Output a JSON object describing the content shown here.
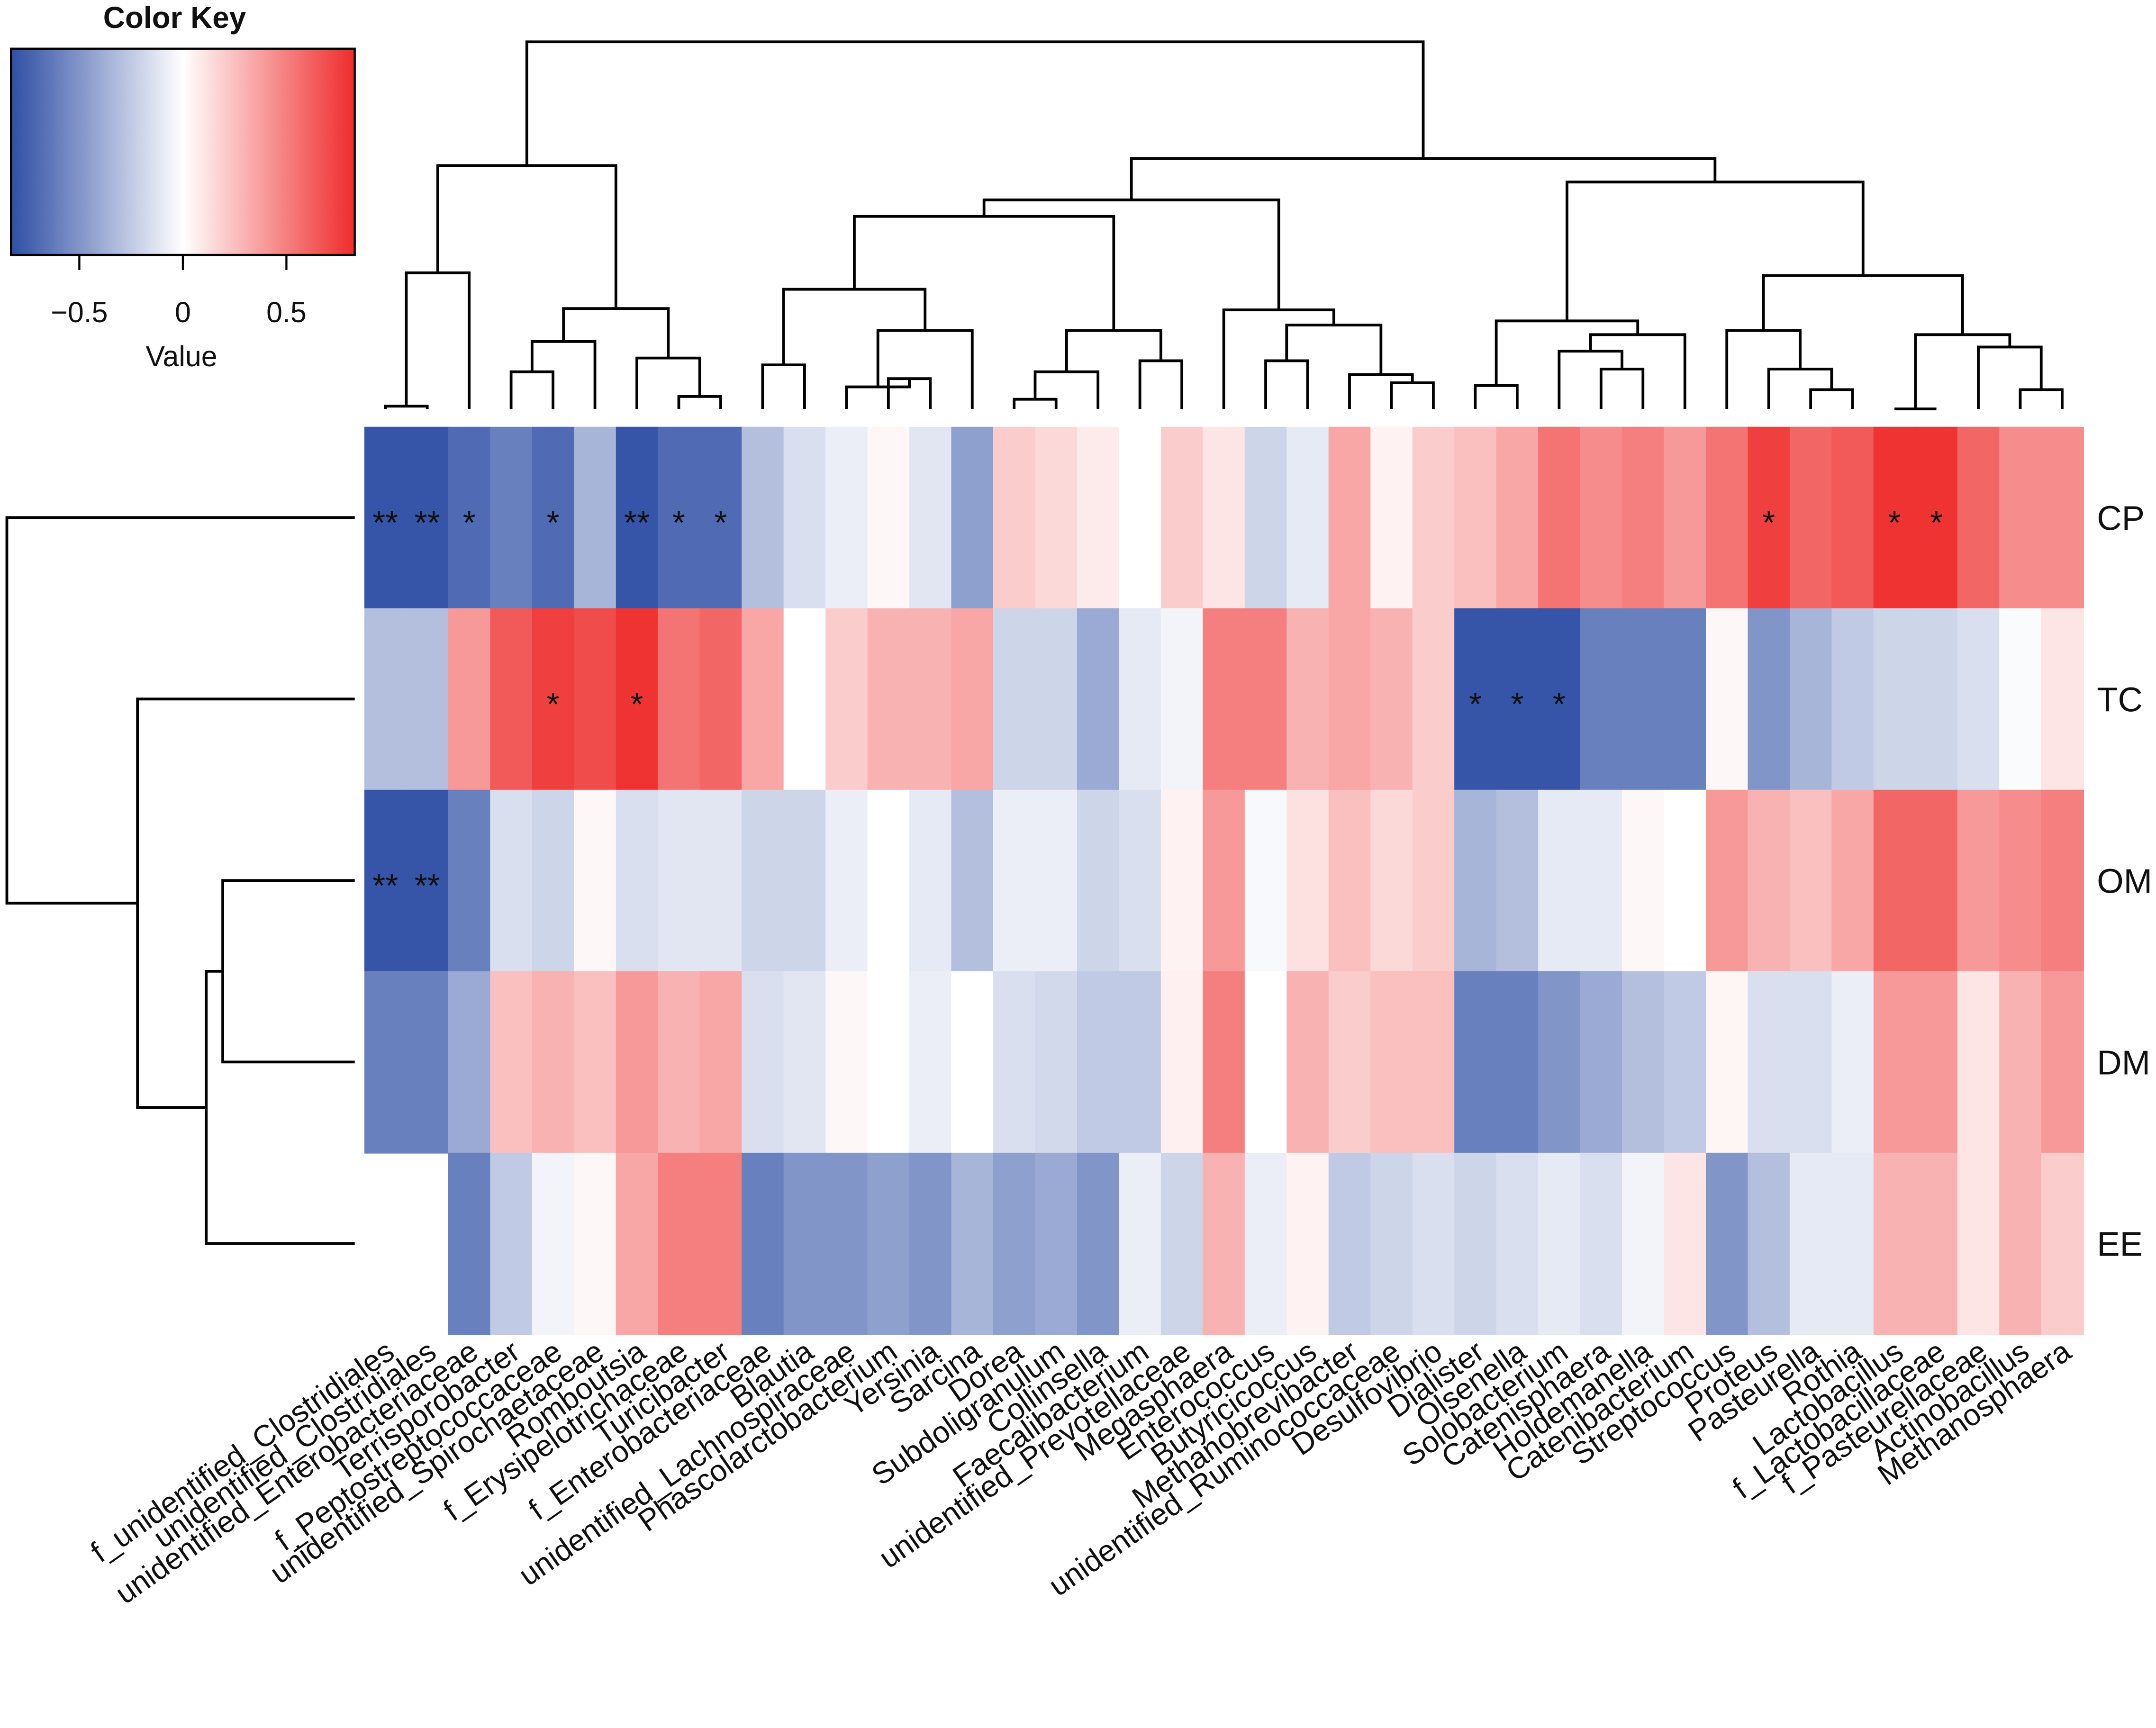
{
  "chart_data": {
    "type": "heatmap",
    "legend_title": "Color Key",
    "legend_axis_label": "Value",
    "zlim": [
      -0.83,
      0.83
    ],
    "zticks": [
      {
        "value": -0.5,
        "label": "−0.5"
      },
      0,
      0.5
    ],
    "colors": [
      "#2f4fa5",
      "#ffffff",
      "#ee2b2b"
    ],
    "rows": [
      "CP",
      "TC",
      "OM",
      "DM",
      "EE"
    ],
    "columns": [
      "f_unidentified_Clostridiales",
      "unidentified_Clostridiales",
      "unidentified_Enterobacteriaceae",
      "Terrisporobacter",
      "f_Peptostreptococcaceae",
      "unidentified_Spirochaetaceae",
      "Romboutsia",
      "f_Erysipelotrichaceae",
      "Turicibacter",
      "f_Enterobacteriaceae",
      "Blautia",
      "unidentified_Lachnospiraceae",
      "Phascolarctobacterium",
      "Yersinia",
      "Sarcina",
      "Dorea",
      "Subdoligranulum",
      "Collinsella",
      "Faecalibacterium",
      "unidentified_Prevotellaceae",
      "Megasphaera",
      "Enterococcus",
      "Butyricicoccus",
      "Methanobrevibacter",
      "unidentified_Ruminococcaceae",
      "Desulfovibrio",
      "Dialister",
      "Olsenella",
      "Solobacterium",
      "Catenisphaera",
      "Holdemanella",
      "Catenibacterium",
      "Streptococcus",
      "Proteus",
      "Pasteurella",
      "Rothia",
      "Lactobacillus",
      "f_Lactobacillaceae",
      "f_Pasteurellaceae",
      "Actinobacillus",
      "Methanosphaera"
    ],
    "values": [
      [
        -0.8,
        -0.8,
        -0.7,
        -0.6,
        -0.7,
        -0.35,
        -0.8,
        -0.7,
        -0.7,
        -0.3,
        -0.15,
        -0.08,
        0.03,
        -0.12,
        -0.45,
        0.2,
        0.15,
        0.08,
        0,
        0.2,
        0.1,
        -0.2,
        -0.1,
        0.35,
        0.05,
        0.2,
        0.25,
        0.35,
        0.55,
        0.45,
        0.5,
        0.4,
        0.55,
        0.75,
        0.6,
        0.65,
        0.8,
        0.8,
        0.6,
        0.45,
        0.45
      ],
      [
        -0.3,
        -0.3,
        0.4,
        0.65,
        0.75,
        0.7,
        0.8,
        0.55,
        0.6,
        0.35,
        0,
        0.2,
        0.3,
        0.3,
        0.35,
        -0.2,
        -0.2,
        -0.4,
        -0.1,
        -0.05,
        0.5,
        0.5,
        0.3,
        0.35,
        0.3,
        0.2,
        -0.8,
        -0.8,
        -0.8,
        -0.6,
        -0.6,
        -0.6,
        0.03,
        -0.5,
        -0.35,
        -0.25,
        -0.2,
        -0.2,
        -0.15,
        -0.02,
        0.1
      ],
      [
        -0.8,
        -0.8,
        -0.6,
        -0.15,
        -0.2,
        0.03,
        -0.15,
        -0.12,
        -0.12,
        -0.2,
        -0.2,
        -0.08,
        0,
        -0.1,
        -0.3,
        -0.08,
        -0.08,
        -0.2,
        -0.15,
        0.05,
        0.4,
        -0.03,
        0.12,
        0.25,
        0.15,
        0.2,
        -0.35,
        -0.3,
        -0.1,
        -0.1,
        0.03,
        0,
        0.4,
        0.3,
        0.25,
        0.35,
        0.6,
        0.6,
        0.4,
        0.45,
        0.5
      ],
      [
        -0.6,
        -0.6,
        -0.4,
        0.25,
        0.3,
        0.25,
        0.4,
        0.3,
        0.35,
        -0.15,
        -0.12,
        0.03,
        0,
        -0.08,
        0,
        -0.15,
        -0.18,
        -0.25,
        -0.25,
        0.06,
        0.5,
        0,
        0.3,
        0.2,
        0.25,
        0.25,
        -0.6,
        -0.6,
        -0.5,
        -0.4,
        -0.3,
        -0.25,
        0.04,
        -0.15,
        -0.15,
        -0.08,
        0.4,
        0.4,
        0.1,
        0.3,
        0.4
      ],
      [
        null,
        null,
        -0.6,
        -0.25,
        -0.05,
        0.03,
        0.35,
        0.5,
        0.5,
        -0.6,
        -0.5,
        -0.5,
        -0.45,
        -0.5,
        -0.35,
        -0.45,
        -0.4,
        -0.5,
        -0.08,
        -0.2,
        0.3,
        -0.08,
        0.05,
        -0.25,
        -0.2,
        -0.15,
        -0.2,
        -0.15,
        -0.1,
        -0.15,
        -0.05,
        0.1,
        -0.5,
        -0.3,
        -0.1,
        -0.1,
        0.3,
        0.3,
        0.1,
        0.3,
        0.2
      ]
    ],
    "stars": [
      [
        "**",
        "**",
        "*",
        null,
        "*",
        null,
        "**",
        "*",
        "*",
        null,
        null,
        null,
        null,
        null,
        null,
        null,
        null,
        null,
        null,
        null,
        null,
        null,
        null,
        null,
        null,
        null,
        null,
        null,
        null,
        null,
        null,
        null,
        null,
        "*",
        null,
        null,
        "*",
        "*",
        null,
        null,
        null
      ],
      [
        null,
        null,
        null,
        null,
        "*",
        null,
        "*",
        null,
        null,
        null,
        null,
        null,
        null,
        null,
        null,
        null,
        null,
        null,
        null,
        null,
        null,
        null,
        null,
        null,
        null,
        null,
        "*",
        "*",
        "*",
        null,
        null,
        null,
        null,
        null,
        null,
        null,
        null,
        null,
        null,
        null,
        null
      ],
      [
        "**",
        "**",
        null,
        null,
        null,
        null,
        null,
        null,
        null,
        null,
        null,
        null,
        null,
        null,
        null,
        null,
        null,
        null,
        null,
        null,
        null,
        null,
        null,
        null,
        null,
        null,
        null,
        null,
        null,
        null,
        null,
        null,
        null,
        null,
        null,
        null,
        null,
        null,
        null,
        null,
        null
      ],
      [
        null,
        null,
        null,
        null,
        null,
        null,
        null,
        null,
        null,
        null,
        null,
        null,
        null,
        null,
        null,
        null,
        null,
        null,
        null,
        null,
        null,
        null,
        null,
        null,
        null,
        null,
        null,
        null,
        null,
        null,
        null,
        null,
        null,
        null,
        null,
        null,
        null,
        null,
        null,
        null,
        null
      ],
      [
        null,
        null,
        null,
        null,
        null,
        null,
        null,
        null,
        null,
        null,
        null,
        null,
        null,
        null,
        null,
        null,
        null,
        null,
        null,
        null,
        null,
        null,
        null,
        null,
        null,
        null,
        null,
        null,
        null,
        null,
        null,
        null,
        null,
        null,
        null,
        null,
        null,
        null,
        null,
        null,
        null
      ]
    ]
  }
}
